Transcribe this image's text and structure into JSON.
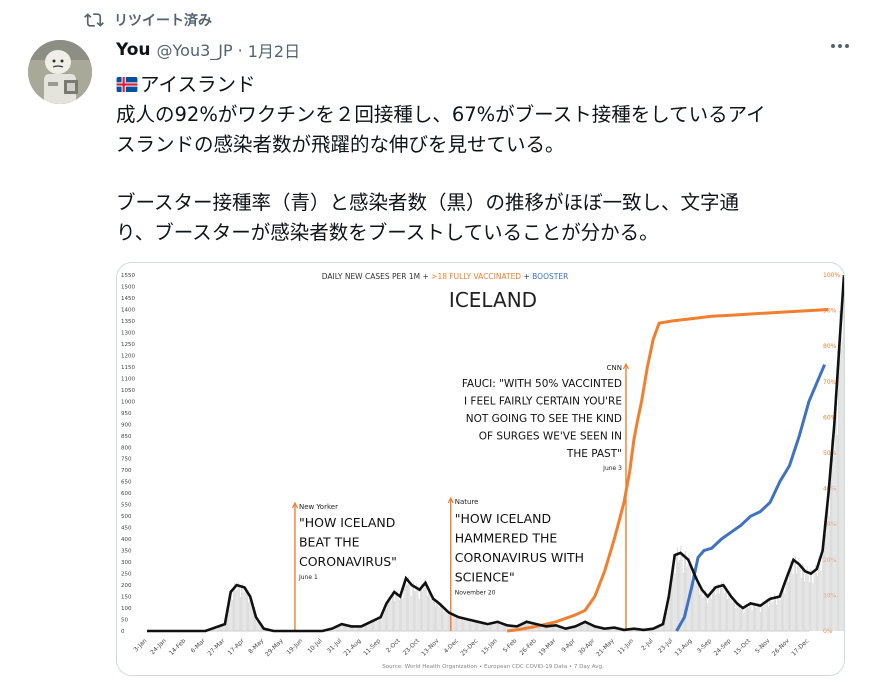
{
  "retweet": {
    "label": "リツイート済み"
  },
  "author": {
    "name": "You",
    "handle": "@You3_JP",
    "separator": "·",
    "date": "1月2日"
  },
  "tweet": {
    "line1": "アイスランド",
    "line2": "成人の92%がワクチンを２回接種し、67%がブースト接種をしているアイ",
    "line3": "スランドの感染者数が飛躍的な伸びを見せている。",
    "line4": "ブースター接種率（青）と感染者数（黒）の推移がほぼ一致し、文字通",
    "line5": "り、ブースターが感染者数をブーストしていることが分かる。"
  },
  "icons": {
    "retweet": "retweet-icon",
    "more": "more-icon",
    "flag": "iceland-flag-icon"
  },
  "colors": {
    "cases": "#111111",
    "vaccinated": "#f0802f",
    "booster": "#3f72c2",
    "annotation": "#f0802f"
  },
  "chart_data": {
    "type": "line",
    "title_prefix": "DAILY NEW CASES PER 1M +",
    "title_vaccinated": ">18 FULLY VACCINATED",
    "title_plus": "+",
    "title_booster": "BOOSTER",
    "heading": "ICELAND",
    "left_axis": {
      "min": 0,
      "max": 1550,
      "step": 50
    },
    "right_axis": {
      "min": 0,
      "max": 100,
      "labels": [
        "0%",
        "10%",
        "20%",
        "30%",
        "40%",
        "50%",
        "60%",
        "70%",
        "80%",
        "90%",
        "100%"
      ]
    },
    "x_ticks": [
      "3-Jan",
      "24-Jan",
      "14-Feb",
      "6-Mar",
      "27-Mar",
      "17-Apr",
      "8-May",
      "29-May",
      "19-Jun",
      "10-Jul",
      "31-Jul",
      "21-Aug",
      "11-Sep",
      "2-Oct",
      "23-Oct",
      "13-Nov",
      "4-Dec",
      "25-Dec",
      "15-Jan",
      "5-Feb",
      "26-Feb",
      "19-Mar",
      "9-Apr",
      "30-Apr",
      "21-May",
      "11-Jun",
      "2-Jul",
      "23-Jul",
      "13-Aug",
      "3-Sep",
      "24-Sep",
      "15-Oct",
      "5-Nov",
      "26-Nov",
      "17-Dec"
    ],
    "series": [
      {
        "key": "cases",
        "points": [
          [
            0,
            0
          ],
          [
            3,
            0
          ],
          [
            4,
            30
          ],
          [
            4.3,
            170
          ],
          [
            4.6,
            200
          ],
          [
            5,
            190
          ],
          [
            5.3,
            150
          ],
          [
            5.6,
            60
          ],
          [
            6,
            10
          ],
          [
            6.5,
            0
          ],
          [
            9,
            0
          ],
          [
            9.5,
            10
          ],
          [
            10,
            30
          ],
          [
            10.5,
            20
          ],
          [
            11,
            20
          ],
          [
            12,
            60
          ],
          [
            12.3,
            120
          ],
          [
            12.7,
            170
          ],
          [
            13,
            150
          ],
          [
            13.3,
            230
          ],
          [
            13.6,
            200
          ],
          [
            14,
            180
          ],
          [
            14.3,
            210
          ],
          [
            14.7,
            140
          ],
          [
            15,
            120
          ],
          [
            15.5,
            80
          ],
          [
            16,
            60
          ],
          [
            16.5,
            50
          ],
          [
            17,
            40
          ],
          [
            17.5,
            30
          ],
          [
            18,
            40
          ],
          [
            18.5,
            25
          ],
          [
            19,
            20
          ],
          [
            19.5,
            40
          ],
          [
            20,
            30
          ],
          [
            20.5,
            20
          ],
          [
            21,
            25
          ],
          [
            21.5,
            10
          ],
          [
            22,
            20
          ],
          [
            22.5,
            40
          ],
          [
            23,
            20
          ],
          [
            23.5,
            10
          ],
          [
            24,
            15
          ],
          [
            24.5,
            5
          ],
          [
            25,
            10
          ],
          [
            25.5,
            5
          ],
          [
            26,
            10
          ],
          [
            26.5,
            30
          ],
          [
            26.8,
            150
          ],
          [
            27.1,
            330
          ],
          [
            27.4,
            340
          ],
          [
            27.8,
            310
          ],
          [
            28.2,
            230
          ],
          [
            28.5,
            180
          ],
          [
            28.8,
            150
          ],
          [
            29.2,
            190
          ],
          [
            29.6,
            200
          ],
          [
            30,
            150
          ],
          [
            30.3,
            120
          ],
          [
            30.6,
            100
          ],
          [
            31,
            120
          ],
          [
            31.5,
            110
          ],
          [
            32,
            140
          ],
          [
            32.5,
            150
          ],
          [
            32.8,
            220
          ],
          [
            33.2,
            310
          ],
          [
            33.5,
            290
          ],
          [
            33.8,
            260
          ],
          [
            34.1,
            250
          ],
          [
            34.4,
            270
          ],
          [
            34.7,
            350
          ],
          [
            35,
            600
          ],
          [
            35.3,
            900
          ],
          [
            35.6,
            1300
          ],
          [
            35.8,
            1550
          ]
        ]
      },
      {
        "key": "vaccinated",
        "points": [
          [
            18.5,
            0
          ],
          [
            19,
            5
          ],
          [
            20,
            20
          ],
          [
            21,
            40
          ],
          [
            22,
            70
          ],
          [
            22.5,
            90
          ],
          [
            23,
            150
          ],
          [
            23.5,
            260
          ],
          [
            24,
            400
          ],
          [
            24.5,
            560
          ],
          [
            24.8,
            700
          ],
          [
            25,
            830
          ],
          [
            25.2,
            920
          ],
          [
            25.4,
            1000
          ],
          [
            25.7,
            1150
          ],
          [
            26,
            1270
          ],
          [
            26.3,
            1340
          ],
          [
            27,
            1350
          ],
          [
            28,
            1360
          ],
          [
            29,
            1370
          ],
          [
            30,
            1375
          ],
          [
            31,
            1380
          ],
          [
            32,
            1385
          ],
          [
            33,
            1390
          ],
          [
            34,
            1395
          ],
          [
            35,
            1400
          ]
        ]
      },
      {
        "key": "booster",
        "points": [
          [
            27.2,
            0
          ],
          [
            27.6,
            60
          ],
          [
            28,
            200
          ],
          [
            28.3,
            320
          ],
          [
            28.6,
            350
          ],
          [
            29,
            360
          ],
          [
            29.5,
            400
          ],
          [
            30,
            430
          ],
          [
            30.5,
            460
          ],
          [
            31,
            500
          ],
          [
            31.5,
            520
          ],
          [
            32,
            560
          ],
          [
            32.5,
            650
          ],
          [
            33,
            720
          ],
          [
            33.5,
            850
          ],
          [
            34,
            1000
          ],
          [
            34.5,
            1100
          ],
          [
            34.8,
            1160
          ]
        ]
      }
    ],
    "annotations": [
      {
        "source": "New Yorker",
        "lines": [
          "\"HOW ICELAND",
          "BEAT THE",
          "CORONAVIRUS\""
        ],
        "date": "June 1",
        "x": 7.6
      },
      {
        "source": "Nature",
        "lines": [
          "\"HOW ICELAND",
          "HAMMERED THE",
          "CORONAVIRUS WITH",
          "SCIENCE\""
        ],
        "date": "November 20",
        "x": 15.6
      },
      {
        "source": "CNN",
        "lines": [
          "FAUCI: \"WITH 50% VACCINTED",
          "I FEEL FAIRLY CERTAIN YOU'RE",
          "NOT GOING TO SEE THE KIND",
          "OF SURGES WE'VE SEEN IN",
          "THE PAST\""
        ],
        "date": "June 3",
        "x": 24.6
      }
    ],
    "source_note": "Source: World Health Organization • European CDC COVID-19 Data • 7 Day Avg."
  }
}
